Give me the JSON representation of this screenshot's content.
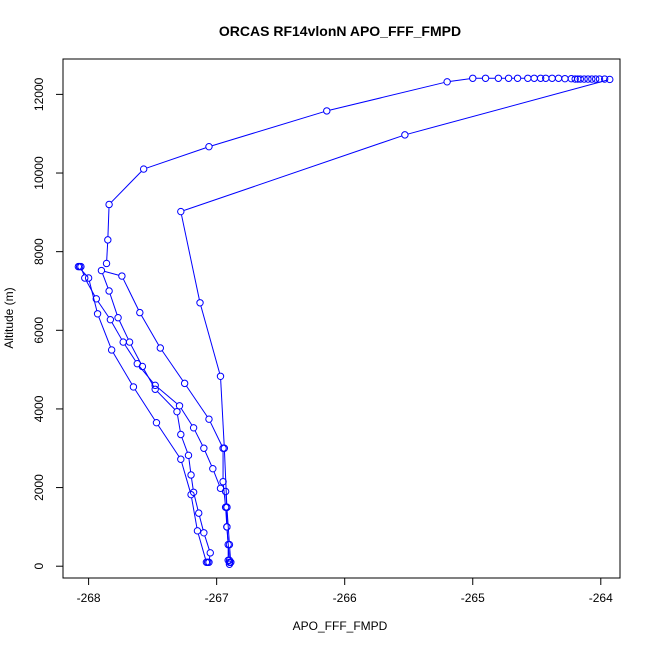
{
  "chart_data": {
    "type": "line",
    "title": "ORCAS RF14vlonN APO_FFF_FMPD",
    "xlabel": "APO_FFF_FMPD",
    "ylabel": "Altitude (m)",
    "xlim": [
      -268.2,
      -263.85
    ],
    "ylim": [
      -300,
      12900
    ],
    "xticks": [
      -268,
      -267,
      -266,
      -265,
      -264
    ],
    "yticks": [
      0,
      2000,
      4000,
      6000,
      8000,
      10000,
      12000
    ],
    "grid": false,
    "legend": "none",
    "color": "#0000ff",
    "marker": "open-circle",
    "series": [
      {
        "points": [
          [
            -266.9,
            50
          ],
          [
            -266.9,
            100
          ],
          [
            -266.91,
            150
          ],
          [
            -266.91,
            550
          ],
          [
            -266.92,
            1000
          ],
          [
            -266.92,
            1500
          ],
          [
            -266.93,
            1900
          ],
          [
            -266.97,
            1980
          ],
          [
            -267.03,
            2480
          ],
          [
            -267.1,
            3000
          ],
          [
            -267.18,
            3520
          ],
          [
            -267.29,
            4080
          ],
          [
            -267.48,
            4600
          ],
          [
            -267.62,
            5150
          ],
          [
            -267.73,
            5700
          ],
          [
            -267.83,
            6270
          ],
          [
            -267.94,
            6800
          ],
          [
            -268.03,
            7330
          ],
          [
            -268.06,
            7620
          ],
          [
            -268.07,
            7620
          ],
          [
            -268.08,
            7620
          ],
          [
            -268.0,
            7330
          ],
          [
            -267.93,
            6420
          ],
          [
            -267.82,
            5500
          ],
          [
            -267.65,
            4560
          ],
          [
            -267.47,
            3650
          ],
          [
            -267.28,
            2720
          ],
          [
            -267.2,
            1820
          ],
          [
            -267.15,
            900
          ],
          [
            -267.08,
            100
          ],
          [
            -267.07,
            100
          ],
          [
            -267.06,
            100
          ],
          [
            -267.05,
            340
          ],
          [
            -267.1,
            850
          ],
          [
            -267.14,
            1350
          ],
          [
            -267.18,
            1880
          ],
          [
            -267.2,
            2320
          ],
          [
            -267.22,
            2820
          ],
          [
            -267.28,
            3350
          ],
          [
            -267.31,
            3930
          ],
          [
            -267.48,
            4500
          ],
          [
            -267.58,
            5080
          ],
          [
            -267.68,
            5700
          ],
          [
            -267.77,
            6320
          ],
          [
            -267.84,
            7000
          ],
          [
            -267.9,
            7520
          ],
          [
            -267.74,
            7380
          ],
          [
            -267.6,
            6450
          ],
          [
            -267.44,
            5550
          ],
          [
            -267.25,
            4650
          ],
          [
            -267.06,
            3740
          ],
          [
            -266.95,
            3000
          ],
          [
            -266.95,
            2150
          ],
          [
            -266.93,
            1500
          ],
          [
            -266.92,
            1000
          ],
          [
            -266.9,
            150
          ],
          [
            -266.89,
            100
          ]
        ]
      },
      {
        "points": [
          [
            -266.89,
            100
          ],
          [
            -266.9,
            550
          ],
          [
            -266.92,
            1500
          ],
          [
            -266.94,
            3000
          ],
          [
            -266.97,
            4830
          ],
          [
            -267.13,
            6700
          ],
          [
            -267.28,
            9020
          ],
          [
            -265.53,
            10970
          ],
          [
            -263.93,
            12380
          ],
          [
            -263.97,
            12390
          ],
          [
            -264.01,
            12390
          ],
          [
            -264.04,
            12390
          ],
          [
            -264.07,
            12390
          ],
          [
            -264.1,
            12390
          ],
          [
            -264.13,
            12390
          ],
          [
            -264.16,
            12390
          ],
          [
            -264.18,
            12390
          ],
          [
            -264.2,
            12390
          ],
          [
            -264.23,
            12400
          ],
          [
            -264.28,
            12400
          ],
          [
            -264.33,
            12410
          ],
          [
            -264.38,
            12410
          ],
          [
            -264.43,
            12410
          ],
          [
            -264.47,
            12410
          ],
          [
            -264.52,
            12410
          ],
          [
            -264.57,
            12410
          ],
          [
            -264.65,
            12410
          ],
          [
            -264.72,
            12410
          ],
          [
            -264.8,
            12410
          ],
          [
            -264.9,
            12410
          ],
          [
            -265.0,
            12410
          ],
          [
            -265.2,
            12320
          ],
          [
            -266.14,
            11580
          ],
          [
            -267.06,
            10670
          ],
          [
            -267.57,
            10100
          ],
          [
            -267.84,
            9200
          ],
          [
            -267.85,
            8300
          ],
          [
            -267.86,
            7700
          ]
        ]
      }
    ]
  }
}
